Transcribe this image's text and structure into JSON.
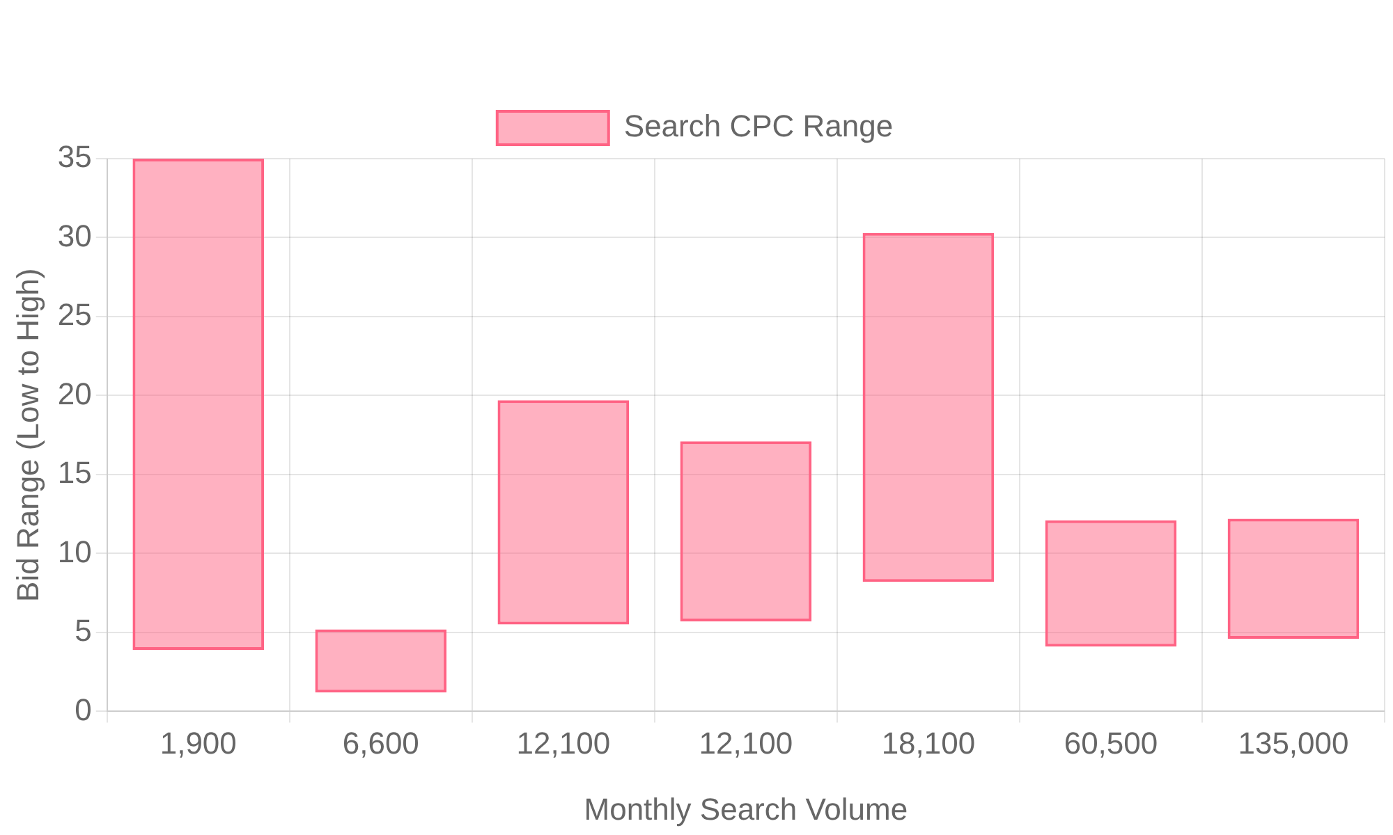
{
  "chart_data": {
    "type": "bar",
    "xlabel": "Monthly Search Volume",
    "ylabel": "Bid Range (Low to High)",
    "categories": [
      "1,900",
      "6,600",
      "12,100",
      "12,100",
      "18,100",
      "60,500",
      "135,000"
    ],
    "series": [
      {
        "name": "Search CPC Range",
        "color": "#ff6384",
        "values": [
          31.1,
          4.0,
          14.2,
          11.4,
          22.1,
          8.0,
          7.6
        ],
        "base": [
          3.9,
          1.2,
          5.5,
          5.7,
          8.2,
          4.1,
          4.6
        ]
      }
    ],
    "ylim": [
      0,
      35
    ],
    "yticks": [
      0,
      5,
      10,
      15,
      20,
      25,
      30,
      35
    ],
    "grid": true,
    "legend": "top"
  }
}
